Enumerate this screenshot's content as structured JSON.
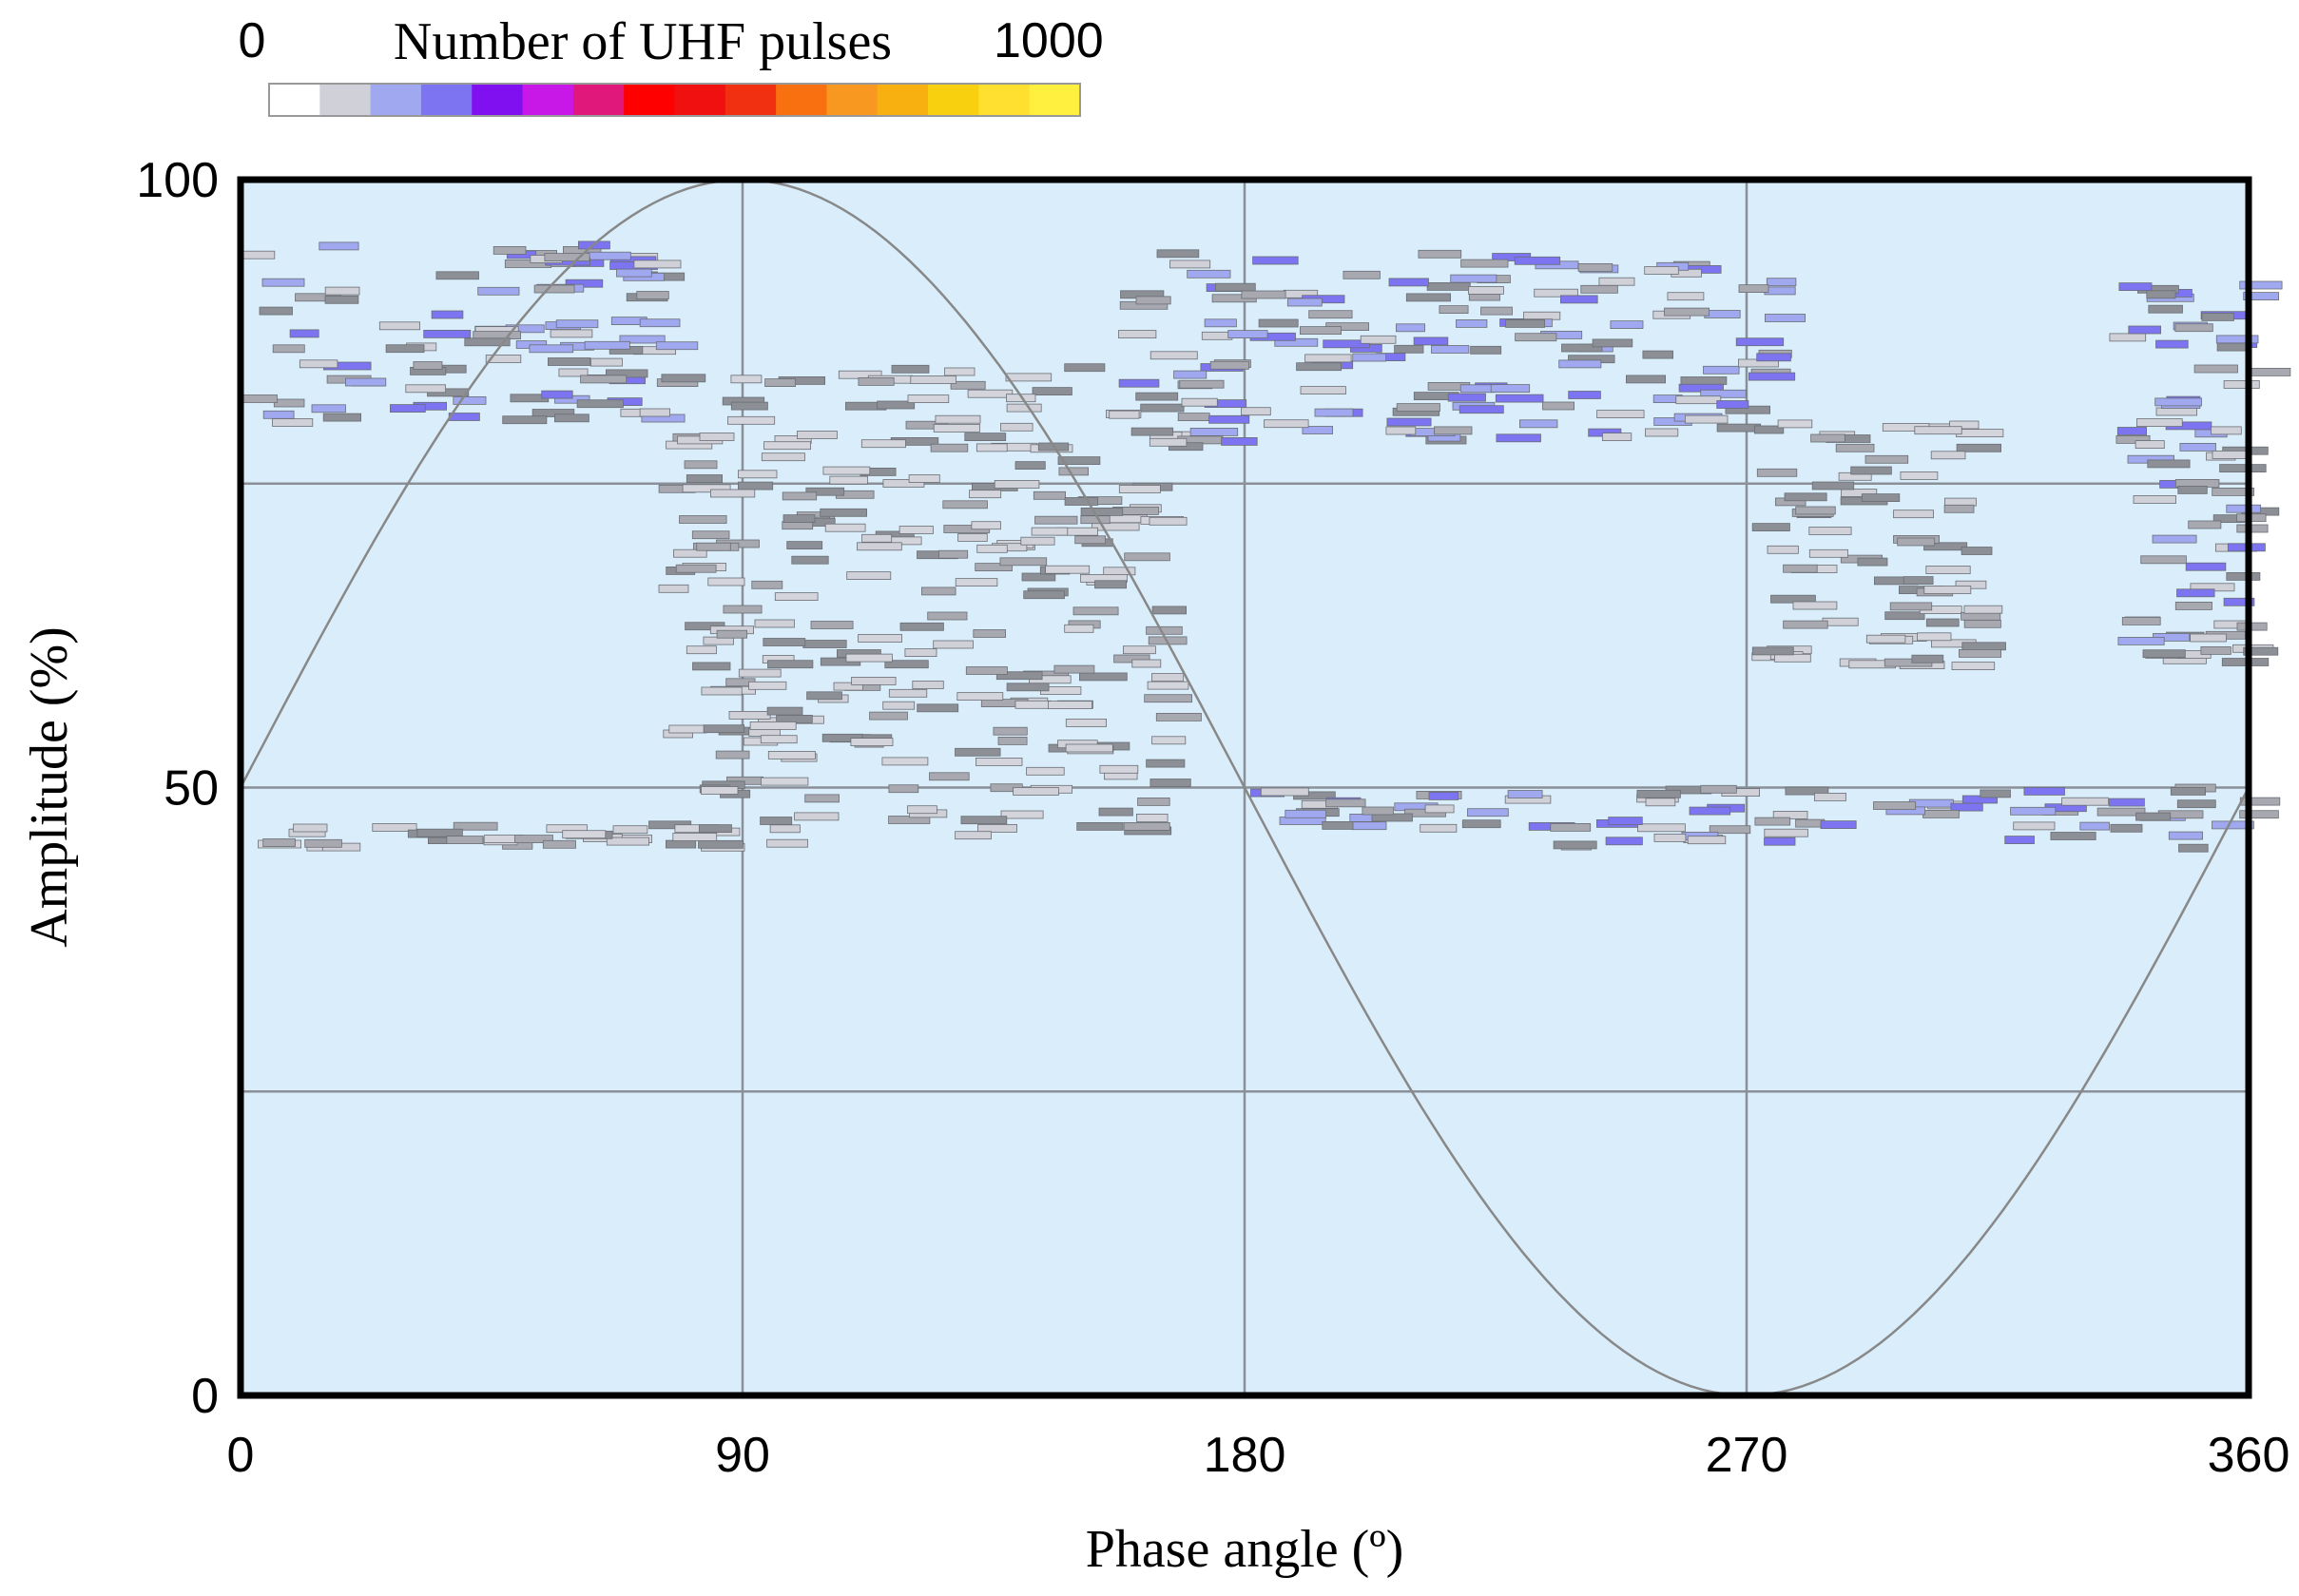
{
  "chart_data": {
    "type": "heatmap",
    "title": "",
    "xlabel": "Phase angle (º)",
    "ylabel": "Amplitude (%)",
    "xlim": [
      0,
      360
    ],
    "ylim": [
      0,
      100
    ],
    "x_ticks": [
      "0",
      "90",
      "180",
      "270",
      "360"
    ],
    "y_ticks": [
      "0",
      "50",
      "100"
    ],
    "gridlines_x": [
      90,
      180,
      270
    ],
    "gridlines_y": [
      25,
      50,
      75
    ],
    "background_color": "#d9edfb",
    "colorbar": {
      "label": "Number of UHF pulses",
      "min_label": "0",
      "max_label": "1000",
      "colors": [
        "#ffffff",
        "#d0d0d8",
        "#a0a8f0",
        "#7c74f0",
        "#8010f0",
        "#c818e8",
        "#e0187c",
        "#ff0000",
        "#f01010",
        "#f03010",
        "#f87010",
        "#f89820",
        "#f8b010",
        "#f8d010",
        "#ffe030",
        "#fff040"
      ]
    },
    "reference_curve": {
      "name": "",
      "x": [
        0,
        45,
        90,
        135,
        180,
        225,
        270,
        315,
        360
      ],
      "y": [
        50,
        85.4,
        100,
        85.4,
        50,
        14.6,
        0,
        14.6,
        50
      ]
    },
    "clusters": [
      {
        "phase": [
          0,
          75
        ],
        "amplitude": [
          80,
          95
        ],
        "level": "medium"
      },
      {
        "phase": [
          0,
          95
        ],
        "amplitude": [
          45,
          47
        ],
        "level": "low"
      },
      {
        "phase": [
          75,
          165
        ],
        "amplitude": [
          46,
          85
        ],
        "level": "low"
      },
      {
        "phase": [
          155,
          275
        ],
        "amplitude": [
          78,
          94
        ],
        "level": "medium"
      },
      {
        "phase": [
          180,
          360
        ],
        "amplitude": [
          45,
          50
        ],
        "level": "medium"
      },
      {
        "phase": [
          270,
          310
        ],
        "amplitude": [
          60,
          80
        ],
        "level": "low"
      },
      {
        "phase": [
          335,
          360
        ],
        "amplitude": [
          60,
          92
        ],
        "level": "medium"
      }
    ]
  }
}
